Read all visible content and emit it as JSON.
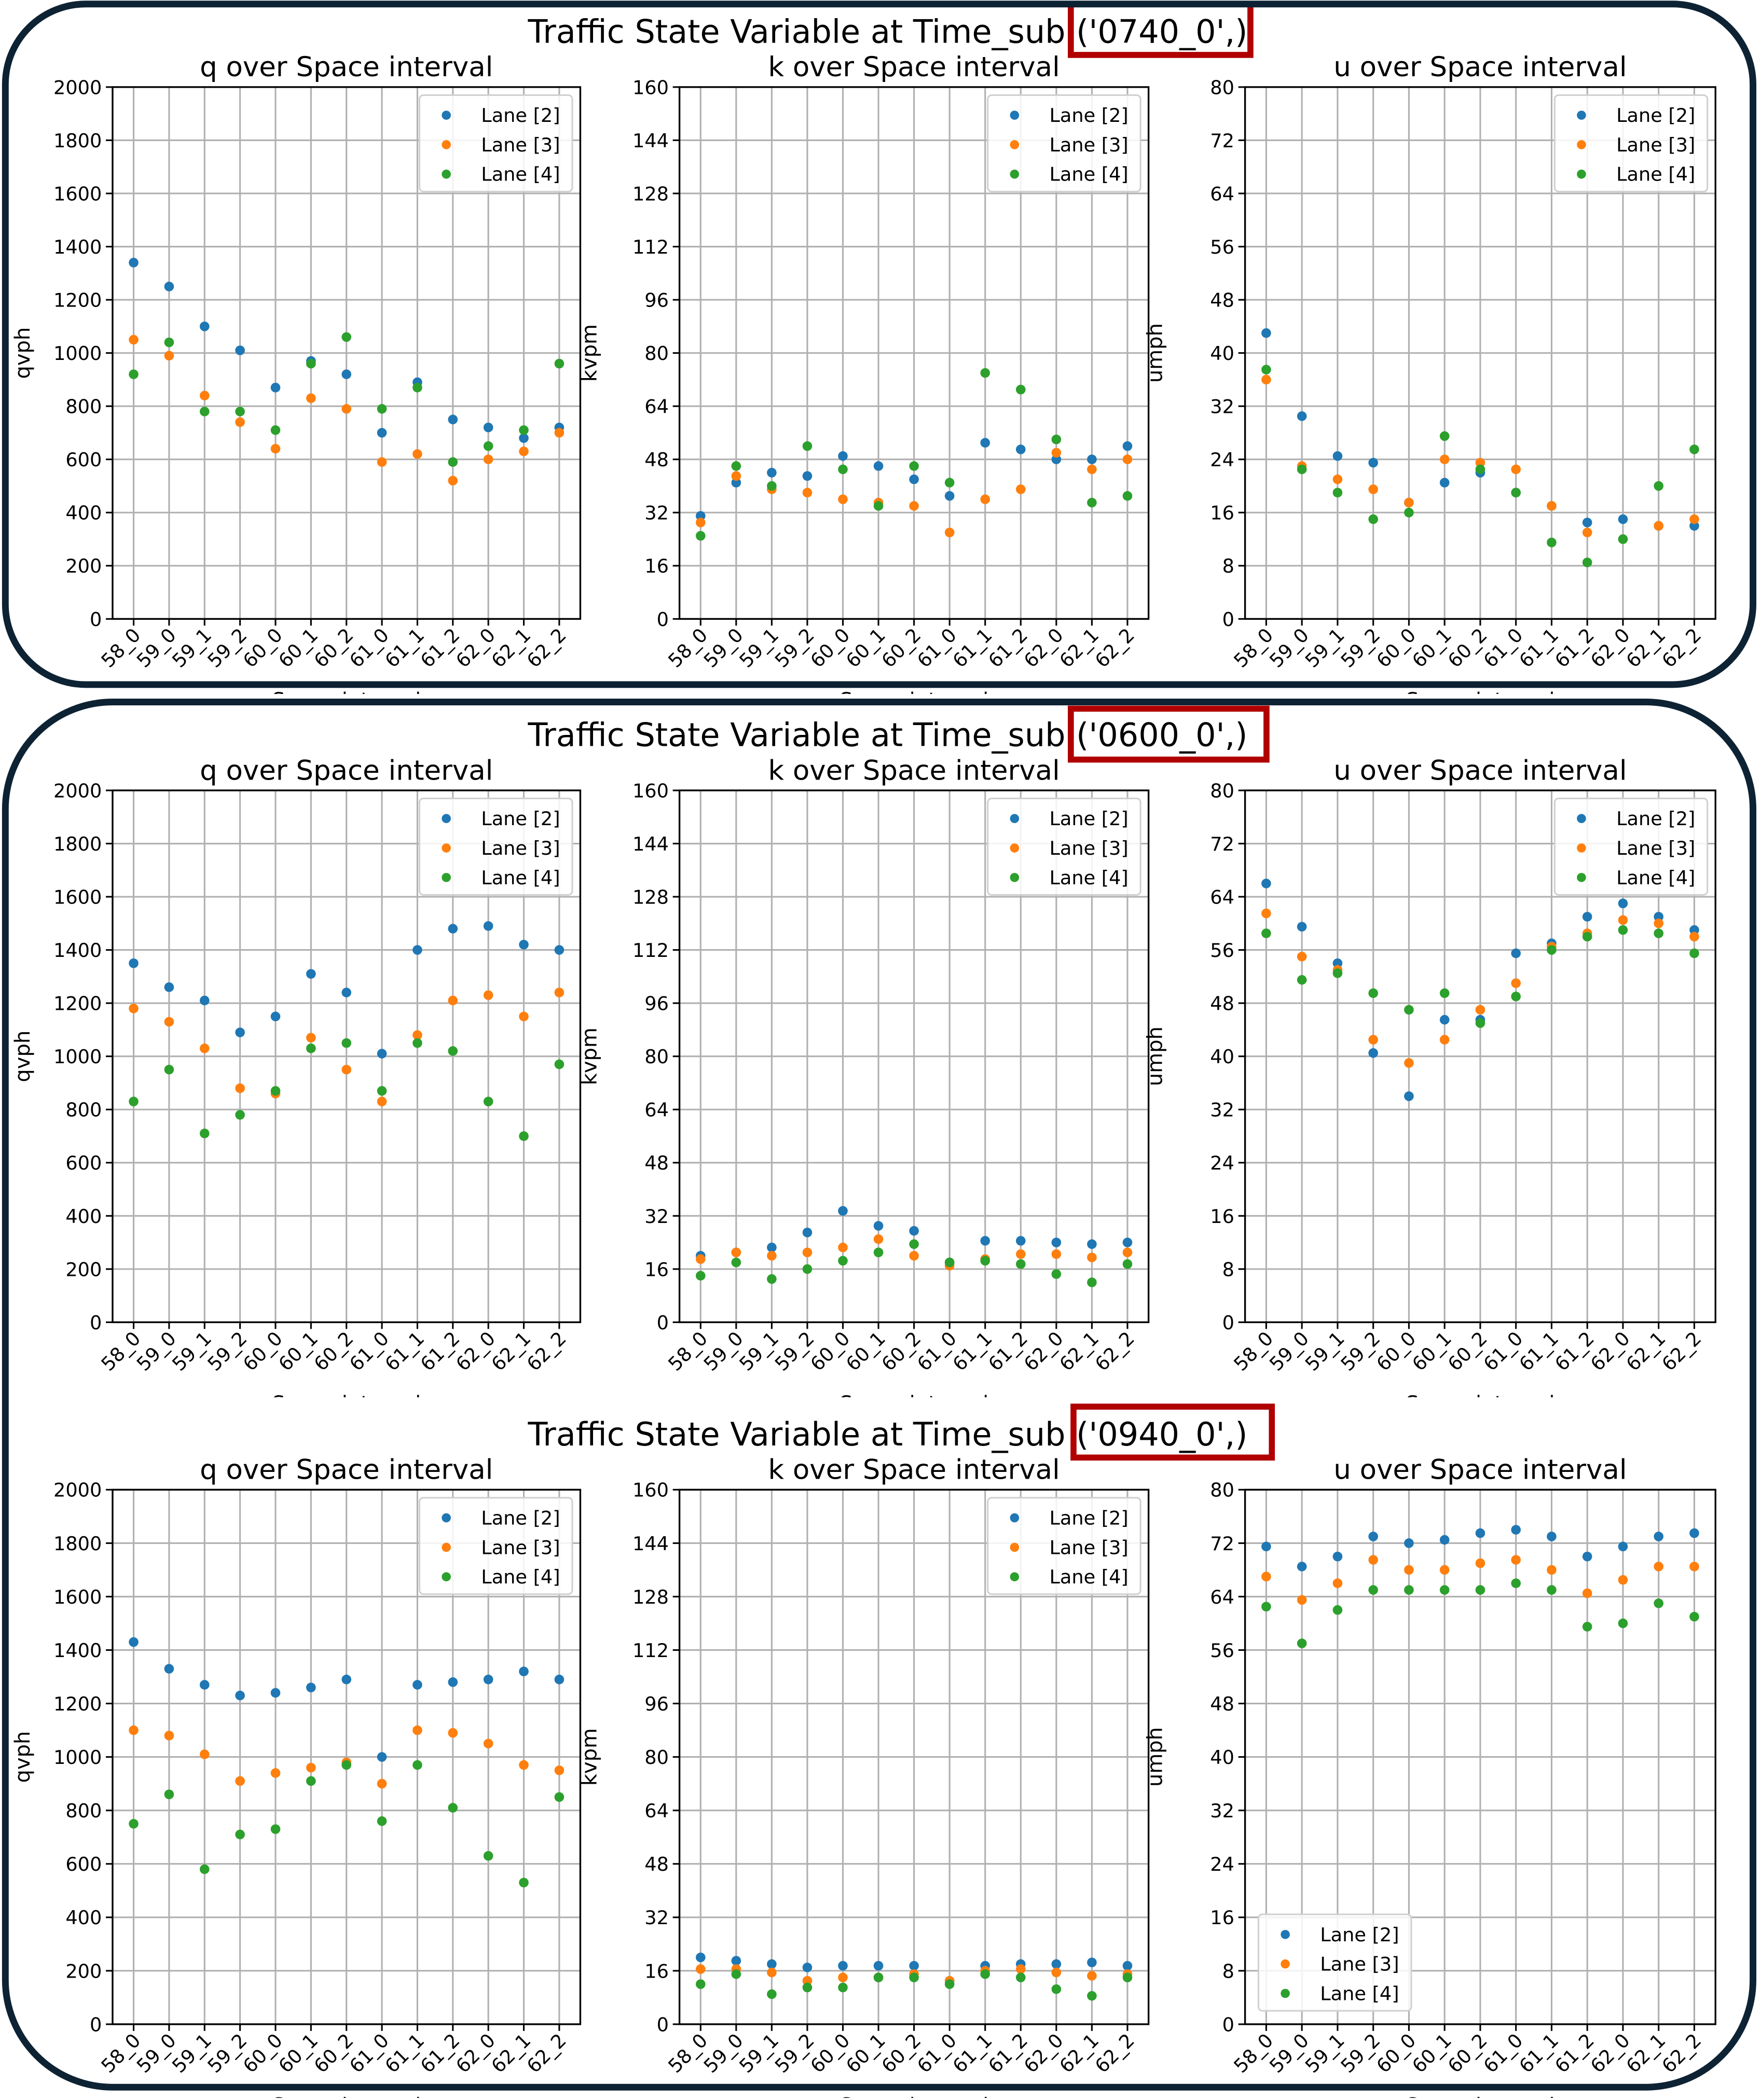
{
  "figures": [
    {
      "title_prefix": "Traffic State Variable at Time_sub",
      "title_highlight": "('0740_0',)",
      "xlabel_visible": "Space interval"
    },
    {
      "title_prefix": "Traffic State Variable at Time_sub",
      "title_highlight": "('0600_0',)",
      "xlabel_visible": "Space interval"
    },
    {
      "title_prefix": "Traffic State Variable at Time_sub",
      "title_highlight": "('0940_0',)",
      "xlabel_visible": "Space interval"
    }
  ],
  "colors": {
    "lane2": "#1f77b4",
    "lane3": "#ff7f0e",
    "lane4": "#2ca02c",
    "highlight_box": "#b00000",
    "border": "#0d2233",
    "grid": "#b0b0b0"
  },
  "chart_data": [
    {
      "type": "scatter",
      "figure": "0740_0",
      "title": "q over Space interval",
      "xlabel": "Space interval",
      "ylabel": "qvph",
      "ylim": [
        0,
        2000
      ],
      "yticks": [
        0,
        200,
        400,
        600,
        800,
        1000,
        1200,
        1400,
        1600,
        1800,
        2000
      ],
      "categories": [
        "58_0",
        "59_0",
        "59_1",
        "59_2",
        "60_0",
        "60_1",
        "60_2",
        "61_0",
        "61_1",
        "61_2",
        "62_0",
        "62_1",
        "62_2"
      ],
      "legend": "top-right",
      "grid": true,
      "series": [
        {
          "name": "Lane [2]",
          "values": [
            1340,
            1250,
            1100,
            1010,
            870,
            970,
            920,
            700,
            890,
            750,
            720,
            680,
            720
          ]
        },
        {
          "name": "Lane [3]",
          "values": [
            1050,
            990,
            840,
            740,
            640,
            830,
            790,
            590,
            620,
            520,
            600,
            630,
            700
          ]
        },
        {
          "name": "Lane [4]",
          "values": [
            920,
            1040,
            780,
            780,
            710,
            960,
            1060,
            790,
            870,
            590,
            650,
            710,
            960
          ]
        }
      ]
    },
    {
      "type": "scatter",
      "figure": "0740_0",
      "title": "k over Space interval",
      "xlabel": "Space interval",
      "ylabel": "kvpm",
      "ylim": [
        0,
        160
      ],
      "yticks": [
        0,
        16,
        32,
        48,
        64,
        80,
        96,
        112,
        128,
        144,
        160
      ],
      "categories": [
        "58_0",
        "59_0",
        "59_1",
        "59_2",
        "60_0",
        "60_1",
        "60_2",
        "61_0",
        "61_1",
        "61_2",
        "62_0",
        "62_1",
        "62_2"
      ],
      "legend": "top-right",
      "grid": true,
      "series": [
        {
          "name": "Lane [2]",
          "values": [
            31,
            41,
            44,
            43,
            49,
            46,
            42,
            37,
            53,
            51,
            48,
            48,
            52
          ]
        },
        {
          "name": "Lane [3]",
          "values": [
            29,
            43,
            39,
            38,
            36,
            35,
            34,
            26,
            36,
            39,
            50,
            45,
            48
          ]
        },
        {
          "name": "Lane [4]",
          "values": [
            25,
            46,
            40,
            52,
            45,
            34,
            46,
            41,
            74,
            69,
            54,
            35,
            37
          ]
        }
      ]
    },
    {
      "type": "scatter",
      "figure": "0740_0",
      "title": "u over Space interval",
      "xlabel": "Space interval",
      "ylabel": "umph",
      "ylim": [
        0,
        80
      ],
      "yticks": [
        0,
        8,
        16,
        24,
        32,
        40,
        48,
        56,
        64,
        72,
        80
      ],
      "categories": [
        "58_0",
        "59_0",
        "59_1",
        "59_2",
        "60_0",
        "60_1",
        "60_2",
        "61_0",
        "61_1",
        "61_2",
        "62_0",
        "62_1",
        "62_2"
      ],
      "legend": "top-right",
      "grid": true,
      "series": [
        {
          "name": "Lane [2]",
          "values": [
            43,
            30.5,
            24.5,
            23.5,
            17.5,
            20.5,
            22,
            19,
            17,
            14.5,
            15,
            14,
            14
          ]
        },
        {
          "name": "Lane [3]",
          "values": [
            36,
            23,
            21,
            19.5,
            17.5,
            24,
            23.5,
            22.5,
            17,
            13,
            12,
            14,
            15
          ]
        },
        {
          "name": "Lane [4]",
          "values": [
            37.5,
            22.5,
            19,
            15,
            16,
            27.5,
            22.5,
            19,
            11.5,
            8.5,
            12,
            20,
            25.5
          ]
        }
      ]
    },
    {
      "type": "scatter",
      "figure": "0600_0",
      "title": "q over Space interval",
      "xlabel": "Space interval",
      "ylabel": "qvph",
      "ylim": [
        0,
        2000
      ],
      "yticks": [
        0,
        200,
        400,
        600,
        800,
        1000,
        1200,
        1400,
        1600,
        1800,
        2000
      ],
      "categories": [
        "58_0",
        "59_0",
        "59_1",
        "59_2",
        "60_0",
        "60_1",
        "60_2",
        "61_0",
        "61_1",
        "61_2",
        "62_0",
        "62_1",
        "62_2"
      ],
      "legend": "top-right",
      "grid": true,
      "series": [
        {
          "name": "Lane [2]",
          "values": [
            1350,
            1260,
            1210,
            1090,
            1150,
            1310,
            1240,
            1010,
            1400,
            1480,
            1490,
            1420,
            1400
          ]
        },
        {
          "name": "Lane [3]",
          "values": [
            1180,
            1130,
            1030,
            880,
            860,
            1070,
            950,
            830,
            1080,
            1210,
            1230,
            1150,
            1240
          ]
        },
        {
          "name": "Lane [4]",
          "values": [
            830,
            950,
            710,
            780,
            870,
            1030,
            1050,
            870,
            1050,
            1020,
            830,
            700,
            970
          ]
        }
      ]
    },
    {
      "type": "scatter",
      "figure": "0600_0",
      "title": "k over Space interval",
      "xlabel": "Space interval",
      "ylabel": "kvpm",
      "ylim": [
        0,
        160
      ],
      "yticks": [
        0,
        16,
        32,
        48,
        64,
        80,
        96,
        112,
        128,
        144,
        160
      ],
      "categories": [
        "58_0",
        "59_0",
        "59_1",
        "59_2",
        "60_0",
        "60_1",
        "60_2",
        "61_0",
        "61_1",
        "61_2",
        "62_0",
        "62_1",
        "62_2"
      ],
      "legend": "top-right",
      "grid": true,
      "series": [
        {
          "name": "Lane [2]",
          "values": [
            20,
            21,
            22.5,
            27,
            33.5,
            29,
            27.5,
            18,
            24.5,
            24.5,
            24,
            23.5,
            24
          ]
        },
        {
          "name": "Lane [3]",
          "values": [
            19,
            21,
            20,
            21,
            22.5,
            25,
            20,
            17,
            19,
            20.5,
            20.5,
            19.5,
            21
          ]
        },
        {
          "name": "Lane [4]",
          "values": [
            14,
            18,
            13,
            16,
            18.5,
            21,
            23.5,
            18,
            18.5,
            17.5,
            14.5,
            12,
            17.5
          ]
        }
      ]
    },
    {
      "type": "scatter",
      "figure": "0600_0",
      "title": "u over Space interval",
      "xlabel": "Space interval",
      "ylabel": "umph",
      "ylim": [
        0,
        80
      ],
      "yticks": [
        0,
        8,
        16,
        24,
        32,
        40,
        48,
        56,
        64,
        72,
        80
      ],
      "categories": [
        "58_0",
        "59_0",
        "59_1",
        "59_2",
        "60_0",
        "60_1",
        "60_2",
        "61_0",
        "61_1",
        "61_2",
        "62_0",
        "62_1",
        "62_2"
      ],
      "legend": "top-right",
      "grid": true,
      "series": [
        {
          "name": "Lane [2]",
          "values": [
            66,
            59.5,
            54,
            40.5,
            34,
            45.5,
            45.5,
            55.5,
            57,
            61,
            63,
            61,
            59
          ]
        },
        {
          "name": "Lane [3]",
          "values": [
            61.5,
            55,
            53,
            42.5,
            39,
            42.5,
            47,
            51,
            56.5,
            58.5,
            60.5,
            60,
            58
          ]
        },
        {
          "name": "Lane [4]",
          "values": [
            58.5,
            51.5,
            52.5,
            49.5,
            47,
            49.5,
            45,
            49,
            56,
            58,
            59,
            58.5,
            55.5
          ]
        }
      ]
    },
    {
      "type": "scatter",
      "figure": "0940_0",
      "title": "q over Space interval",
      "xlabel": "Space interval",
      "ylabel": "qvph",
      "ylim": [
        0,
        2000
      ],
      "yticks": [
        0,
        200,
        400,
        600,
        800,
        1000,
        1200,
        1400,
        1600,
        1800,
        2000
      ],
      "categories": [
        "58_0",
        "59_0",
        "59_1",
        "59_2",
        "60_0",
        "60_1",
        "60_2",
        "61_0",
        "61_1",
        "61_2",
        "62_0",
        "62_1",
        "62_2"
      ],
      "legend": "top-right",
      "grid": true,
      "series": [
        {
          "name": "Lane [2]",
          "values": [
            1430,
            1330,
            1270,
            1230,
            1240,
            1260,
            1290,
            1000,
            1270,
            1280,
            1290,
            1320,
            1290
          ]
        },
        {
          "name": "Lane [3]",
          "values": [
            1100,
            1080,
            1010,
            910,
            940,
            960,
            980,
            900,
            1100,
            1090,
            1050,
            970,
            950
          ]
        },
        {
          "name": "Lane [4]",
          "values": [
            750,
            860,
            580,
            710,
            730,
            910,
            970,
            760,
            970,
            810,
            630,
            530,
            850
          ]
        }
      ]
    },
    {
      "type": "scatter",
      "figure": "0940_0",
      "title": "k over Space interval",
      "xlabel": "Space interval",
      "ylabel": "kvpm",
      "ylim": [
        0,
        160
      ],
      "yticks": [
        0,
        16,
        32,
        48,
        64,
        80,
        96,
        112,
        128,
        144,
        160
      ],
      "categories": [
        "58_0",
        "59_0",
        "59_1",
        "59_2",
        "60_0",
        "60_1",
        "60_2",
        "61_0",
        "61_1",
        "61_2",
        "62_0",
        "62_1",
        "62_2"
      ],
      "legend": "top-right",
      "grid": true,
      "series": [
        {
          "name": "Lane [2]",
          "values": [
            20,
            19,
            18,
            17,
            17.5,
            17.5,
            17.5,
            13,
            17.5,
            18,
            18,
            18.5,
            17.5
          ]
        },
        {
          "name": "Lane [3]",
          "values": [
            16.5,
            16.5,
            15.5,
            13,
            14,
            14,
            15,
            13,
            16,
            16.5,
            15.5,
            14.5,
            15
          ]
        },
        {
          "name": "Lane [4]",
          "values": [
            12,
            15,
            9,
            11,
            11,
            14,
            14,
            12,
            15,
            14,
            10.5,
            8.5,
            14
          ]
        }
      ]
    },
    {
      "type": "scatter",
      "figure": "0940_0",
      "title": "u over Space interval",
      "xlabel": "Space interval",
      "ylabel": "umph",
      "ylim": [
        0,
        80
      ],
      "yticks": [
        0,
        8,
        16,
        24,
        32,
        40,
        48,
        56,
        64,
        72,
        80
      ],
      "categories": [
        "58_0",
        "59_0",
        "59_1",
        "59_2",
        "60_0",
        "60_1",
        "60_2",
        "61_0",
        "61_1",
        "61_2",
        "62_0",
        "62_1",
        "62_2"
      ],
      "legend": "bottom-left",
      "grid": true,
      "series": [
        {
          "name": "Lane [2]",
          "values": [
            71.5,
            68.5,
            70,
            73,
            72,
            72.5,
            73.5,
            74,
            73,
            70,
            71.5,
            73,
            73.5
          ]
        },
        {
          "name": "Lane [3]",
          "values": [
            67,
            63.5,
            66,
            69.5,
            68,
            68,
            69,
            69.5,
            68,
            64.5,
            66.5,
            68.5,
            68.5
          ]
        },
        {
          "name": "Lane [4]",
          "values": [
            62.5,
            57,
            62,
            65,
            65,
            65,
            65,
            66,
            65,
            59.5,
            60,
            63,
            61
          ]
        }
      ]
    }
  ]
}
